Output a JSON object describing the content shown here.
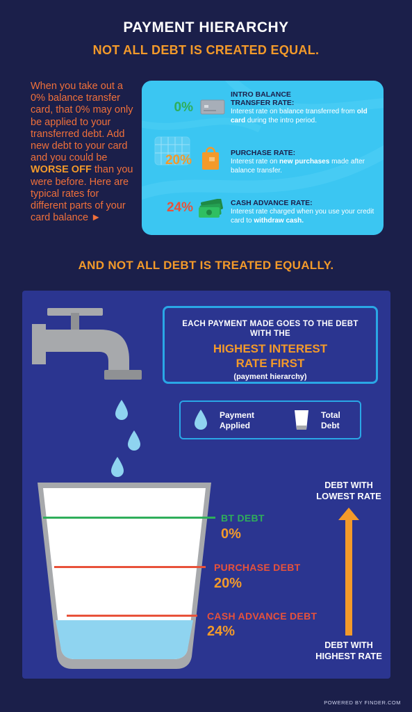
{
  "header": {
    "title": "PAYMENT HIERARCHY",
    "subtitle": "NOT ALL DEBT IS CREATED EQUAL."
  },
  "intro": {
    "text_before": "When you take out a 0% balance transfer card, that 0% may only be applied to your transferred debt. Add new debt to your card and you could be ",
    "highlight": "WORSE OFF",
    "text_after": " than you were before. Here are typical rates for different parts of your card balance ►"
  },
  "rates": [
    {
      "percent": "0%",
      "color": "#2fae5a",
      "icon": "credit-card-icon",
      "title_line1": "INTRO BALANCE",
      "title_line2": "TRANSFER RATE:",
      "desc_before": "Interest rate on balance transferred from ",
      "desc_bold": "old card",
      "desc_after": " during the intro period."
    },
    {
      "percent": "20%",
      "color": "#f39a2a",
      "icon": "shopping-bag-icon",
      "title_line1": "PURCHASE RATE:",
      "title_line2": "",
      "desc_before": "Interest rate on ",
      "desc_bold": "new purchases",
      "desc_after": " made after balance transfer."
    },
    {
      "percent": "24%",
      "color": "#e8523a",
      "icon": "cash-icon",
      "title_line1": "CASH ADVANCE RATE:",
      "title_line2": "",
      "desc_before": "Interest rate charged when you use your credit card to ",
      "desc_bold": "withdraw cash.",
      "desc_after": ""
    }
  ],
  "section2": {
    "title": "AND NOT ALL DEBT IS TREATED EQUALLY."
  },
  "callout": {
    "line1": "EACH PAYMENT MADE GOES TO THE DEBT",
    "line2": "WITH THE",
    "big1": "HIGHEST INTEREST",
    "big2": "RATE FIRST",
    "sub": "(payment hierarchy)"
  },
  "legend": {
    "payment_line1": "Payment",
    "payment_line2": "Applied",
    "total_line1": "Total",
    "total_line2": "Debt"
  },
  "debts": [
    {
      "label": "BT DEBT",
      "percent": "0%",
      "color": "#2fae5a"
    },
    {
      "label": "PURCHASE DEBT",
      "percent": "20%",
      "color": "#e8523a"
    },
    {
      "label": "CASH ADVANCE DEBT",
      "percent": "24%",
      "color": "#e8523a"
    }
  ],
  "arrow": {
    "top_line1": "DEBT WITH",
    "top_line2": "LOWEST RATE",
    "bottom_line1": "DEBT WITH",
    "bottom_line2": "HIGHEST RATE",
    "color": "#f39a2a"
  },
  "footer": {
    "powered": "POWERED BY FINDER.COM"
  },
  "colors": {
    "background": "#1b1f4a",
    "panel": "#2b3590",
    "card": "#3bc6f2",
    "accent_orange": "#f39a2a",
    "accent_red": "#e8523a",
    "water": "#8fd4f0"
  }
}
